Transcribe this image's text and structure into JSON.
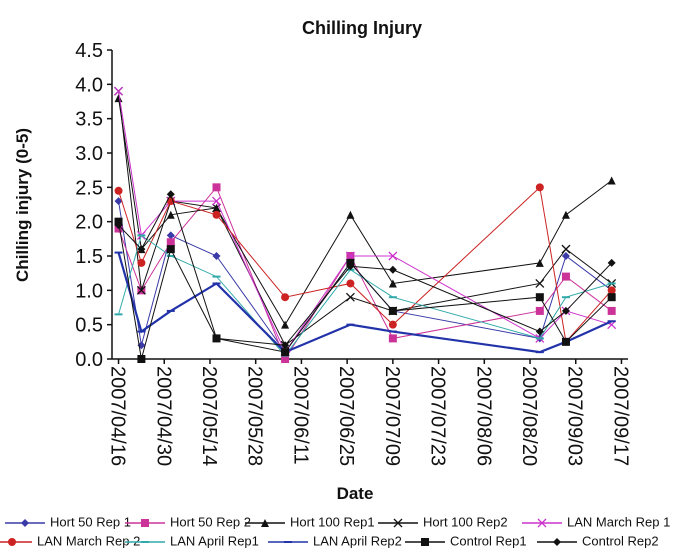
{
  "chart_data": {
    "type": "line",
    "title": "Chilling Injury",
    "x_label": "Date",
    "y_label": "Chilling injury (0-5)",
    "x": [
      "2007/04/16",
      "2007/04/23",
      "2007/05/02",
      "2007/05/16",
      "2007/06/06",
      "2007/06/26",
      "2007/07/09",
      "2007/08/23",
      "2007/08/31",
      "2007/09/14"
    ],
    "xlim": [
      "2007/04/14",
      "2007/09/19"
    ],
    "xticks": [
      "2007/04/16",
      "2007/04/30",
      "2007/05/14",
      "2007/05/28",
      "2007/06/11",
      "2007/06/25",
      "2007/07/09",
      "2007/07/23",
      "2007/08/06",
      "2007/08/20",
      "2007/09/03",
      "2007/09/17"
    ],
    "ylim": [
      0,
      4.5
    ],
    "yticks": [
      {
        "value": 0,
        "label": "0.0"
      },
      {
        "value": 0.5,
        "label": "0.5"
      },
      {
        "value": 1,
        "label": "1.0"
      },
      {
        "value": 1.5,
        "label": "1.5"
      },
      {
        "value": 2,
        "label": "2.0"
      },
      {
        "value": 2.5,
        "label": "2.5"
      },
      {
        "value": 3,
        "label": "3.0"
      },
      {
        "value": 3.5,
        "label": "3.5"
      },
      {
        "value": 4,
        "label": "4.0"
      },
      {
        "value": 4.5,
        "label": "4.5"
      }
    ],
    "series": [
      {
        "name": "Hort 50 Rep 1",
        "color": "#3a3aa8",
        "marker": "diamond",
        "values": [
          2.3,
          0.2,
          1.8,
          1.5,
          0.1,
          1.4,
          0.7,
          0.3,
          1.5,
          1.0
        ]
      },
      {
        "name": "Hort 50 Rep 2",
        "color": "#cc3399",
        "marker": "square",
        "values": [
          1.9,
          1.0,
          1.7,
          2.5,
          0.0,
          1.5,
          0.3,
          0.7,
          1.2,
          0.7
        ]
      },
      {
        "name": "Hort 100 Rep1",
        "color": "#111111",
        "marker": "triangle",
        "values": [
          3.8,
          1.6,
          2.1,
          2.2,
          0.5,
          2.1,
          1.1,
          1.4,
          2.1,
          2.6
        ]
      },
      {
        "name": "Hort 100 Rep2",
        "color": "#111111",
        "marker": "x",
        "values": [
          3.9,
          1.0,
          2.3,
          2.2,
          0.2,
          0.9,
          0.7,
          1.1,
          1.6,
          1.1
        ]
      },
      {
        "name": "LAN March Rep 1",
        "color": "#cc33cc",
        "marker": "x",
        "values": [
          3.9,
          1.8,
          2.3,
          2.3,
          0.1,
          1.5,
          1.5,
          0.3,
          0.7,
          0.5
        ]
      },
      {
        "name": "LAN March Rep 2",
        "color": "#cc2222",
        "marker": "circle",
        "values": [
          2.45,
          1.4,
          2.3,
          2.1,
          0.9,
          1.1,
          0.5,
          2.5,
          0.25,
          1.0
        ]
      },
      {
        "name": "LAN April Rep1",
        "color": "#33aaaa",
        "marker": "dash",
        "values": [
          0.65,
          1.8,
          1.5,
          1.2,
          0.05,
          1.3,
          0.9,
          0.3,
          0.9,
          1.1
        ]
      },
      {
        "name": "LAN April Rep2",
        "color": "#2233aa",
        "marker": "dash",
        "values": [
          1.55,
          0.4,
          0.7,
          1.1,
          0.1,
          0.5,
          0.4,
          0.1,
          0.25,
          0.55
        ]
      },
      {
        "name": "Control Rep1",
        "color": "#111111",
        "marker": "square",
        "values": [
          2.0,
          0.0,
          1.6,
          0.3,
          0.1,
          1.4,
          0.7,
          0.9,
          0.25,
          0.9
        ]
      },
      {
        "name": "Control Rep2",
        "color": "#111111",
        "marker": "diamond",
        "values": [
          1.95,
          1.6,
          2.4,
          0.3,
          0.2,
          1.35,
          1.3,
          0.4,
          0.7,
          1.4
        ]
      }
    ]
  }
}
